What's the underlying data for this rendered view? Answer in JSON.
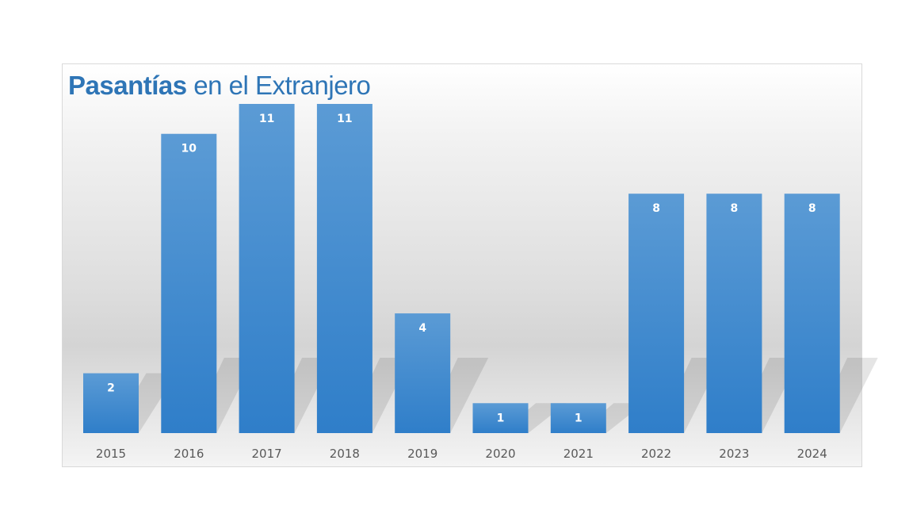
{
  "chart_data": {
    "type": "bar",
    "title_bold": "Pasantías",
    "title_rest": "en el Extranjero",
    "categories": [
      "2015",
      "2016",
      "2017",
      "2018",
      "2019",
      "2020",
      "2021",
      "2022",
      "2023",
      "2024"
    ],
    "values": [
      2,
      10,
      11,
      11,
      4,
      1,
      1,
      8,
      8,
      8
    ],
    "xlabel": "",
    "ylabel": "",
    "ylim": [
      0,
      11
    ],
    "grid": false,
    "legend": "none",
    "bar_color_top": "#5b9bd5",
    "bar_color_bottom": "#2f7ec9",
    "data_label_color": "#ffffff",
    "title_color": "#2e75b6"
  }
}
